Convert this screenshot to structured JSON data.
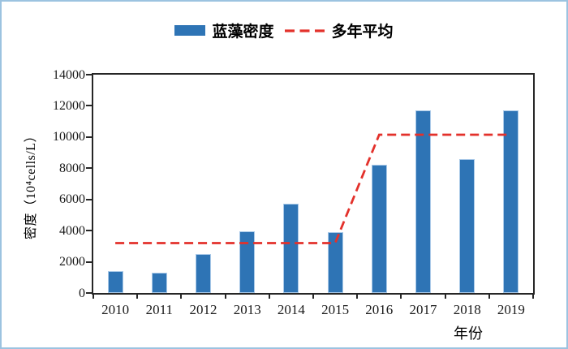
{
  "page": {
    "background": "#ffffff",
    "border_color": "#9cc3e0",
    "axis_color": "#262626"
  },
  "chart_data": {
    "type": "bar",
    "title": "",
    "categories": [
      "2010",
      "2011",
      "2012",
      "2013",
      "2014",
      "2015",
      "2016",
      "2017",
      "2018",
      "2019"
    ],
    "series": [
      {
        "name": "蓝藻密度",
        "type": "bar",
        "color": "#2e74b5",
        "edge_color": "#a9c9e8",
        "values": [
          1400,
          1300,
          2500,
          3950,
          5700,
          3900,
          8200,
          11700,
          8600,
          11700
        ]
      },
      {
        "name": "多年平均",
        "type": "line",
        "line_style": "dashed",
        "color": "#e3312b",
        "values": [
          3200,
          3200,
          3200,
          3200,
          3200,
          3200,
          10150,
          10150,
          10150,
          10150
        ]
      }
    ],
    "xlabel": "年份",
    "ylabel": "密度（10⁴cells/L）",
    "ylim": [
      0,
      14000
    ],
    "yticks": [
      0,
      2000,
      4000,
      6000,
      8000,
      10000,
      12000,
      14000
    ],
    "grid": false,
    "legend_position": "top-center"
  }
}
